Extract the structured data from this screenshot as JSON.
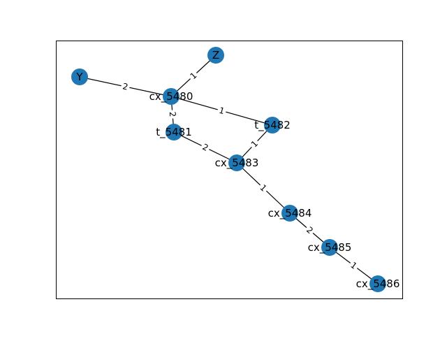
{
  "graph": {
    "node_color": "#1f77b4",
    "edge_color": "#000000",
    "frame_color": "#000000",
    "nodes": [
      {
        "id": "Z",
        "label": "Z"
      },
      {
        "id": "Y",
        "label": "Y"
      },
      {
        "id": "cx_5480",
        "label": "cx_5480"
      },
      {
        "id": "t_5481",
        "label": "t_5481"
      },
      {
        "id": "t_5482",
        "label": "t_5482"
      },
      {
        "id": "cx_5483",
        "label": "cx_5483"
      },
      {
        "id": "cx_5484",
        "label": "cx_5484"
      },
      {
        "id": "cx_5485",
        "label": "cx_5485"
      },
      {
        "id": "cx_5486",
        "label": "cx_5486"
      }
    ],
    "edges": [
      {
        "source": "Z",
        "target": "cx_5480",
        "label": "1"
      },
      {
        "source": "Y",
        "target": "cx_5480",
        "label": "2"
      },
      {
        "source": "cx_5480",
        "target": "t_5482",
        "label": "1"
      },
      {
        "source": "cx_5480",
        "target": "t_5481",
        "label": "2"
      },
      {
        "source": "t_5481",
        "target": "cx_5483",
        "label": "2"
      },
      {
        "source": "t_5482",
        "target": "cx_5483",
        "label": "1"
      },
      {
        "source": "cx_5483",
        "target": "cx_5484",
        "label": "1"
      },
      {
        "source": "cx_5484",
        "target": "cx_5485",
        "label": "2"
      },
      {
        "source": "cx_5485",
        "target": "cx_5486",
        "label": "1"
      }
    ]
  }
}
